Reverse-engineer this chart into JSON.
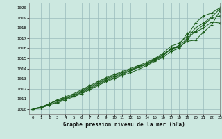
{
  "title": "Graphe pression niveau de la mer (hPa)",
  "bg_color": "#cce8e0",
  "grid_color": "#99bbbb",
  "line_color": "#1a5c1a",
  "xlim": [
    -0.5,
    23
  ],
  "ylim": [
    1009.5,
    1020.5
  ],
  "xticks": [
    0,
    1,
    2,
    3,
    4,
    5,
    6,
    7,
    8,
    9,
    10,
    11,
    12,
    13,
    14,
    15,
    16,
    17,
    18,
    19,
    20,
    21,
    22,
    23
  ],
  "yticks": [
    1010,
    1011,
    1012,
    1013,
    1014,
    1015,
    1016,
    1017,
    1018,
    1019,
    1020
  ],
  "series": [
    [
      1010.0,
      1010.1,
      1010.4,
      1010.6,
      1010.9,
      1011.2,
      1011.5,
      1011.9,
      1012.3,
      1012.7,
      1013.0,
      1013.3,
      1013.6,
      1013.9,
      1014.3,
      1014.7,
      1015.1,
      1015.7,
      1016.0,
      1016.9,
      1017.7,
      1018.3,
      1019.0,
      1019.2
    ],
    [
      1010.0,
      1010.1,
      1010.5,
      1010.8,
      1011.0,
      1011.3,
      1011.7,
      1012.1,
      1012.5,
      1012.9,
      1013.2,
      1013.5,
      1013.8,
      1014.1,
      1014.4,
      1014.8,
      1015.2,
      1016.0,
      1016.1,
      1016.7,
      1016.8,
      1017.6,
      1018.3,
      1019.7
    ],
    [
      1010.0,
      1010.2,
      1010.5,
      1010.9,
      1011.1,
      1011.4,
      1011.8,
      1012.2,
      1012.6,
      1013.0,
      1013.3,
      1013.6,
      1013.9,
      1014.2,
      1014.5,
      1014.9,
      1015.4,
      1015.9,
      1016.3,
      1017.5,
      1017.6,
      1018.0,
      1018.6,
      1018.5
    ],
    [
      1010.0,
      1010.1,
      1010.4,
      1010.7,
      1011.0,
      1011.3,
      1011.6,
      1012.0,
      1012.4,
      1012.8,
      1013.1,
      1013.4,
      1013.8,
      1014.2,
      1014.4,
      1014.9,
      1015.3,
      1015.9,
      1016.2,
      1017.0,
      1018.0,
      1018.5,
      1019.1,
      1019.9
    ],
    [
      1010.0,
      1010.2,
      1010.5,
      1010.9,
      1011.2,
      1011.5,
      1011.9,
      1012.3,
      1012.7,
      1013.1,
      1013.4,
      1013.7,
      1014.0,
      1014.3,
      1014.6,
      1015.0,
      1015.5,
      1016.2,
      1016.5,
      1017.2,
      1018.5,
      1019.2,
      1019.5,
      1020.0
    ]
  ]
}
